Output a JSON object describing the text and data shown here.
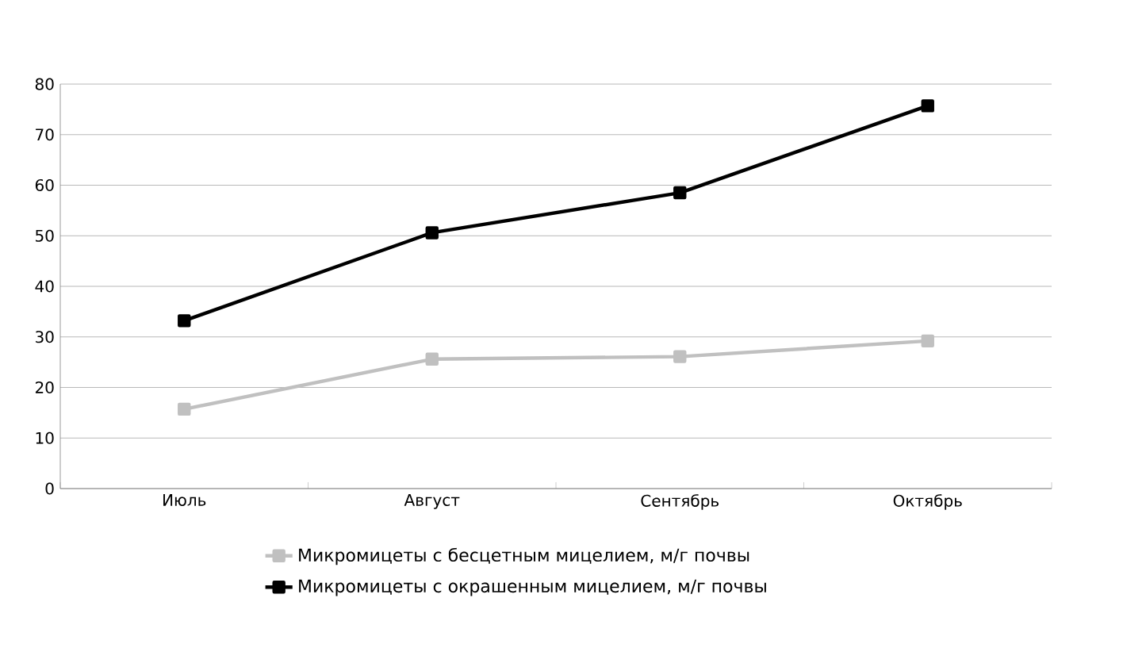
{
  "chart_data": {
    "type": "line",
    "categories": [
      "Июль",
      "Август",
      "Сентябрь",
      "Октябрь"
    ],
    "series": [
      {
        "name": "Микромицеты с бесцетным мицелием, м/г почвы",
        "color": "#c0c0c0",
        "values": [
          15.7,
          25.6,
          26.1,
          29.2
        ]
      },
      {
        "name": "Микромицеты с окрашенным мицелием, м/г почвы",
        "color": "#000000",
        "values": [
          33.2,
          50.6,
          58.5,
          75.7
        ]
      }
    ],
    "ylim": [
      0,
      80
    ],
    "yticks": [
      0,
      10,
      20,
      30,
      40,
      50,
      60,
      70,
      80
    ],
    "grid": "y",
    "legend": "bottom",
    "marker": "square",
    "line_style": "solid"
  }
}
